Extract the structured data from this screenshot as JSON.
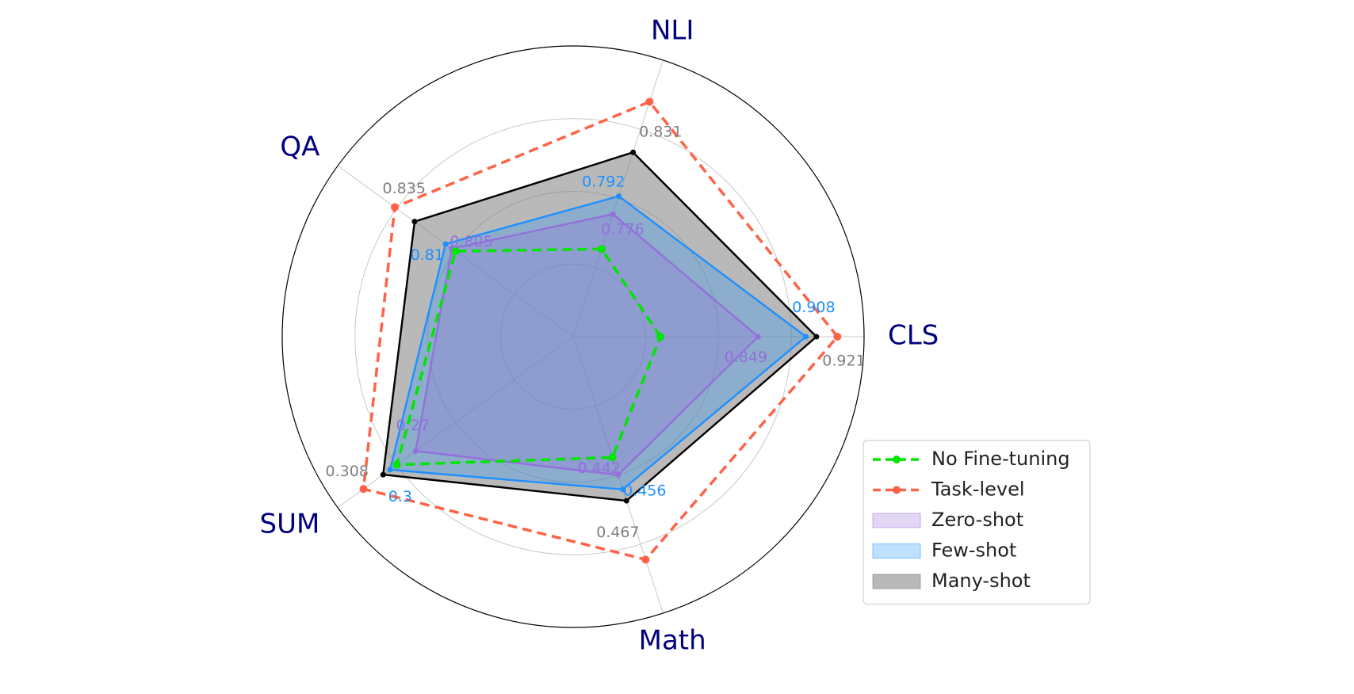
{
  "chart_data": {
    "type": "radar",
    "categories": [
      "CLS",
      "NLI",
      "QA",
      "SUM",
      "Math"
    ],
    "rlims": [
      [
        0.62,
        0.98
      ],
      [
        0.667,
        0.913
      ],
      [
        0.707,
        0.897
      ],
      [
        0.086,
        0.361
      ],
      [
        0.308,
        0.576
      ]
    ],
    "legend_loc": "lower right",
    "series": [
      {
        "name": "No Fine-tuning",
        "kind": "line",
        "color": "#00e600",
        "values": [
          0.728,
          0.745,
          0.802,
          0.292,
          0.425
        ]
      },
      {
        "name": "Task-level",
        "kind": "line",
        "color": "#ff6347",
        "values": [
          0.947,
          0.876,
          0.851,
          0.331,
          0.524
        ]
      },
      {
        "name": "Zero-shot",
        "kind": "area",
        "color": "#9370db",
        "fill": "#9370db",
        "label_color": "#9370db",
        "values": [
          0.849,
          0.776,
          0.805,
          0.27,
          0.442
        ]
      },
      {
        "name": "Few-shot",
        "kind": "area",
        "color": "#1e90ff",
        "fill": "#1e90ff",
        "label_color": "#1e90ff",
        "values": [
          0.908,
          0.792,
          0.81,
          0.3,
          0.456
        ]
      },
      {
        "name": "Many-shot",
        "kind": "area",
        "color": "#000000",
        "fill": "#808080",
        "label_color": "#808080",
        "values": [
          0.921,
          0.831,
          0.835,
          0.308,
          0.467
        ]
      }
    ]
  }
}
